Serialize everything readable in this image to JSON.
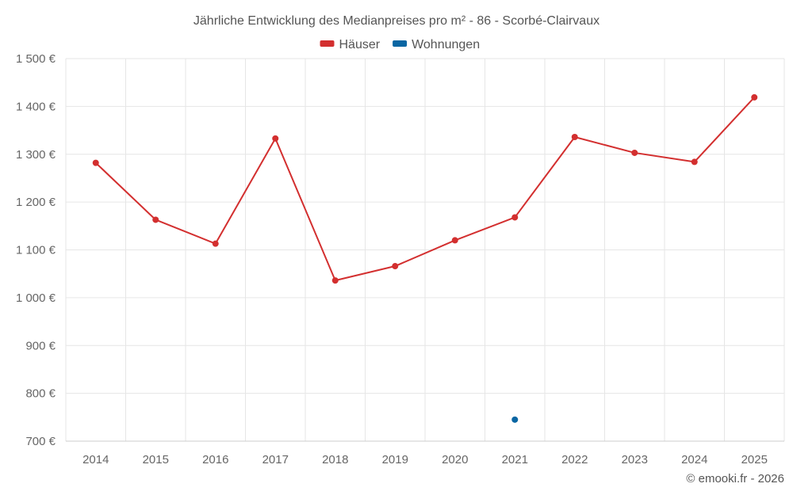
{
  "chart_data": {
    "type": "line",
    "title": "Jährliche Entwicklung des Medianpreises pro m² - 86 - Scorbé-Clairvaux",
    "categories": [
      "2014",
      "2015",
      "2016",
      "2017",
      "2018",
      "2019",
      "2020",
      "2021",
      "2022",
      "2023",
      "2024",
      "2025"
    ],
    "series": [
      {
        "name": "Häuser",
        "color": "#d32f2f",
        "values": [
          1282,
          1163,
          1113,
          1333,
          1036,
          1066,
          1120,
          1168,
          1336,
          1303,
          1284,
          1419
        ]
      },
      {
        "name": "Wohnungen",
        "color": "#0a66a3",
        "values": [
          null,
          null,
          null,
          null,
          null,
          null,
          null,
          745,
          null,
          null,
          null,
          null
        ]
      }
    ],
    "ylim": [
      700,
      1500
    ],
    "yticks": [
      700,
      800,
      900,
      1000,
      1100,
      1200,
      1300,
      1400,
      1500
    ],
    "ytick_labels": [
      "700 €",
      "800 €",
      "900 €",
      "1 000 €",
      "1 100 €",
      "1 200 €",
      "1 300 €",
      "1 400 €",
      "1 500 €"
    ],
    "xlabel": "",
    "ylabel": "",
    "grid": true,
    "legend_position": "top-center"
  },
  "credit": "© emooki.fr - 2026"
}
